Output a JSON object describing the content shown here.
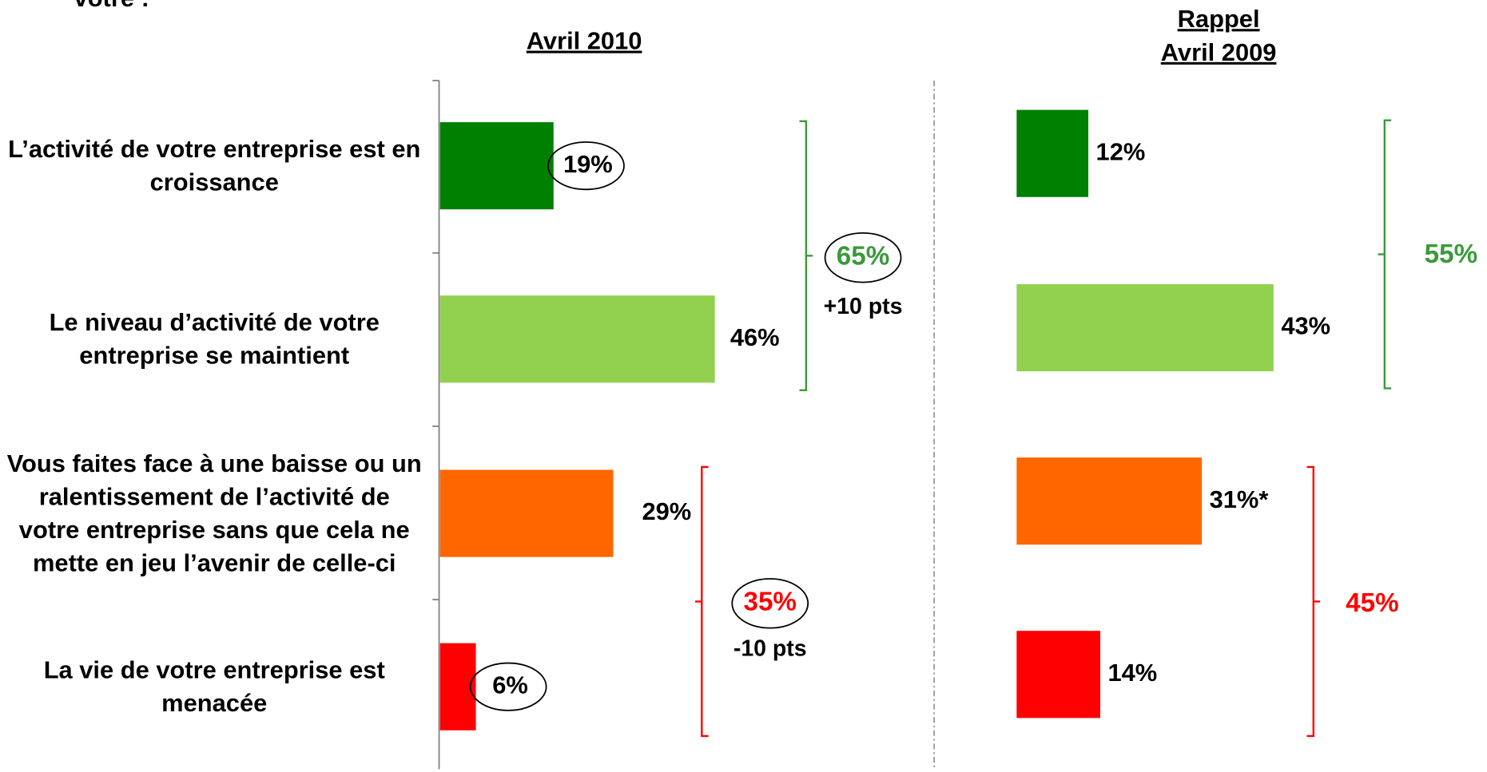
{
  "question_fragment": "votre :",
  "chart_data": [
    {
      "type": "hbar",
      "title": "Avril 2010",
      "categories": [
        "L’activité de votre entreprise est en croissance",
        "Le niveau d’activité de votre entreprise se maintient",
        "Vous faites face à une baisse ou un ralentissement de l’activité de votre entreprise sans que cela ne mette en jeu l’avenir de celle-ci",
        "La vie de votre entreprise est menacée"
      ],
      "values": [
        19,
        46,
        29,
        6
      ],
      "value_labels": [
        "19%",
        "46%",
        "29%",
        "6%"
      ],
      "colors": [
        "#008000",
        "#92d050",
        "#ff6600",
        "#ff0000"
      ],
      "annotations": [
        {
          "text": "65%",
          "subtext": "+10 pts",
          "color": "#3a9a3a"
        },
        {
          "text": "35%",
          "subtext": "-10 pts",
          "color": "#ff0000"
        }
      ]
    },
    {
      "type": "hbar",
      "title": "Rappel",
      "subtitle": "Avril 2009",
      "values": [
        12,
        43,
        31,
        14
      ],
      "value_labels": [
        "12%",
        "43%",
        "31%*",
        "14%"
      ],
      "colors": [
        "#008000",
        "#92d050",
        "#ff6600",
        "#ff0000"
      ],
      "annotations": [
        {
          "text": "55%",
          "color": "#3a9a3a"
        },
        {
          "text": "45%",
          "color": "#ff0000"
        }
      ]
    }
  ]
}
